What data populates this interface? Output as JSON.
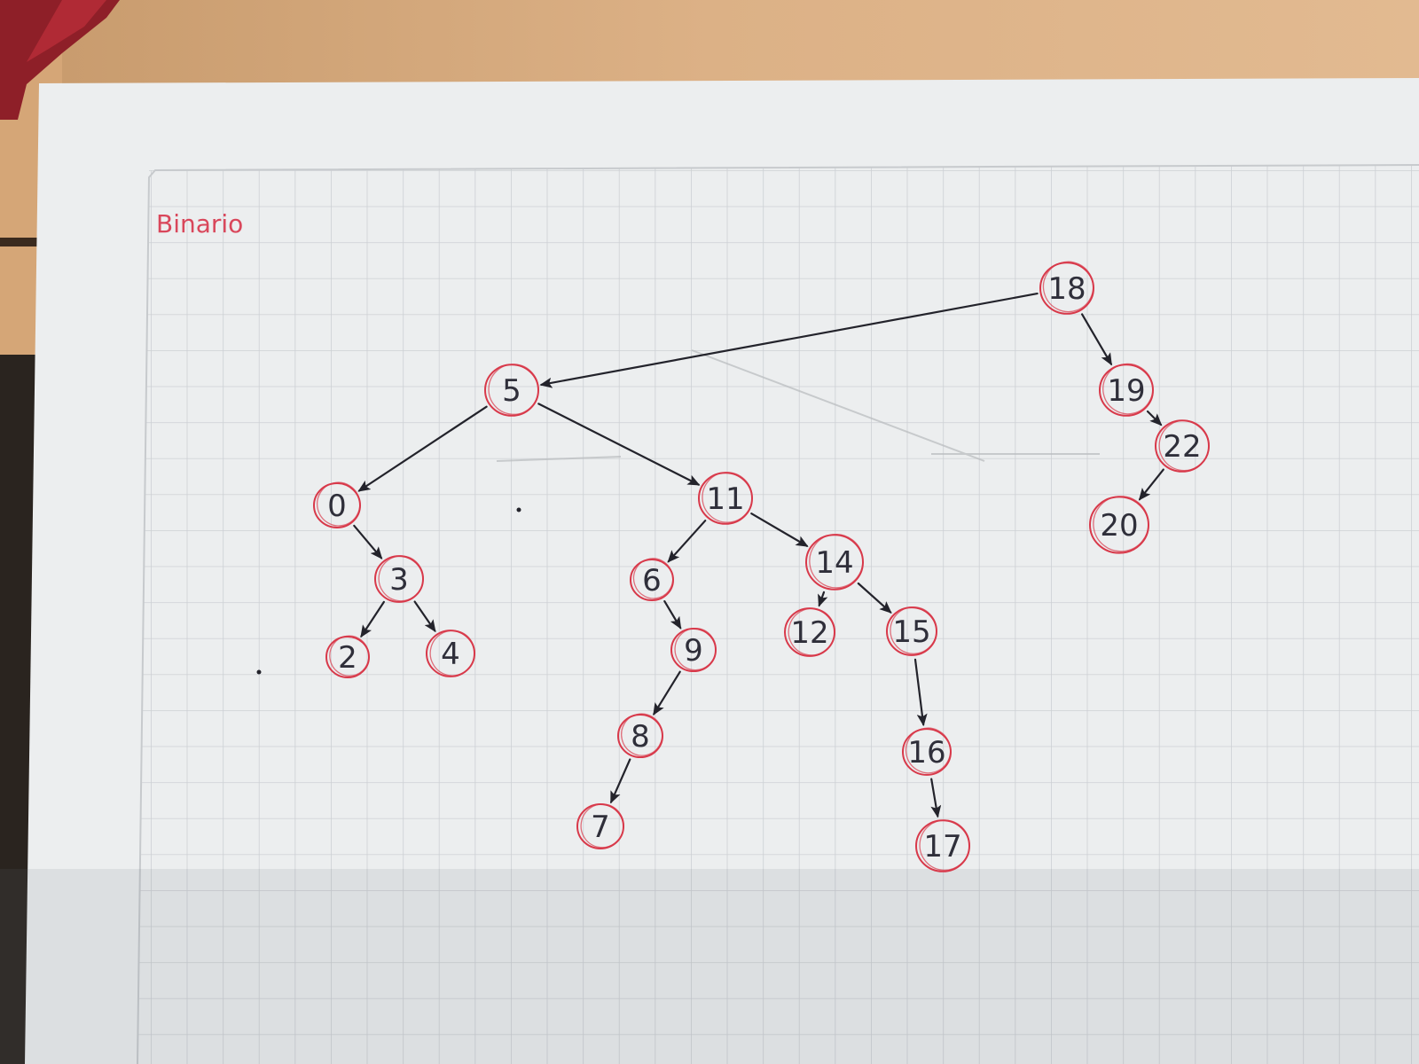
{
  "title": "Binario",
  "colors": {
    "node_circle": "#d8394a",
    "edge": "#23232b",
    "title": "#d9475b",
    "paper": "#f2f3f4",
    "grid": "#cfd0d3",
    "desk": "#d9ad81"
  },
  "nodes": [
    {
      "id": "n18",
      "label": "18"
    },
    {
      "id": "n5",
      "label": "5"
    },
    {
      "id": "n0",
      "label": "0"
    },
    {
      "id": "n3",
      "label": "3"
    },
    {
      "id": "n2",
      "label": "2"
    },
    {
      "id": "n4",
      "label": "4"
    },
    {
      "id": "n11",
      "label": "11"
    },
    {
      "id": "n6",
      "label": "6"
    },
    {
      "id": "n9",
      "label": "9"
    },
    {
      "id": "n8",
      "label": "8"
    },
    {
      "id": "n7",
      "label": "7"
    },
    {
      "id": "n14",
      "label": "14"
    },
    {
      "id": "n12",
      "label": "12"
    },
    {
      "id": "n15",
      "label": "15"
    },
    {
      "id": "n16",
      "label": "16"
    },
    {
      "id": "n17",
      "label": "17"
    },
    {
      "id": "n19",
      "label": "19"
    },
    {
      "id": "n22",
      "label": "22"
    },
    {
      "id": "n20",
      "label": "20"
    }
  ],
  "edges": [
    {
      "from": "n18",
      "to": "n5"
    },
    {
      "from": "n18",
      "to": "n19"
    },
    {
      "from": "n19",
      "to": "n22"
    },
    {
      "from": "n22",
      "to": "n20"
    },
    {
      "from": "n5",
      "to": "n0"
    },
    {
      "from": "n5",
      "to": "n11"
    },
    {
      "from": "n0",
      "to": "n3"
    },
    {
      "from": "n3",
      "to": "n2"
    },
    {
      "from": "n3",
      "to": "n4"
    },
    {
      "from": "n11",
      "to": "n6"
    },
    {
      "from": "n11",
      "to": "n14"
    },
    {
      "from": "n6",
      "to": "n9"
    },
    {
      "from": "n9",
      "to": "n8"
    },
    {
      "from": "n8",
      "to": "n7"
    },
    {
      "from": "n14",
      "to": "n12"
    },
    {
      "from": "n14",
      "to": "n15"
    },
    {
      "from": "n15",
      "to": "n16"
    },
    {
      "from": "n16",
      "to": "n17"
    }
  ]
}
